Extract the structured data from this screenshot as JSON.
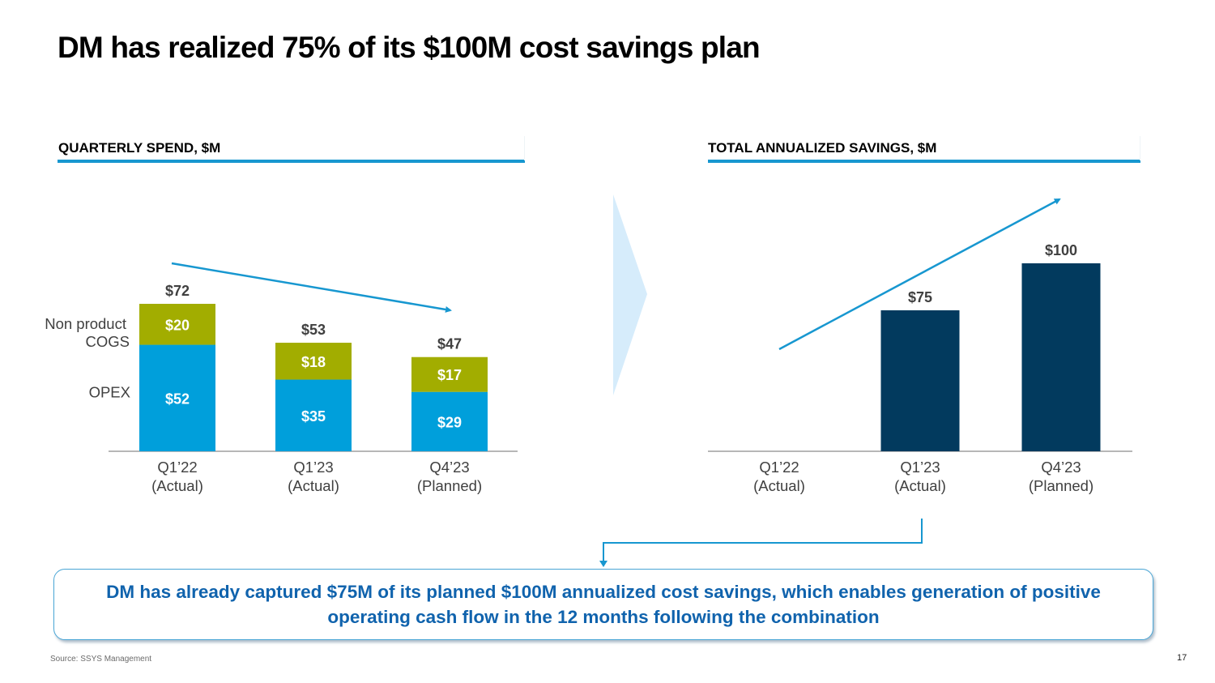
{
  "title": "DM has realized 75% of its $100M cost savings plan",
  "colors": {
    "opex": "#009fdb",
    "non_product_cogs": "#a2ad00",
    "savings_bar": "#023a5e",
    "accent": "#1797d0",
    "callout_text": "#1063ad",
    "chevron": "#d6ecfb"
  },
  "chart_data": [
    {
      "type": "bar",
      "stacked": true,
      "title": "QUARTERLY SPEND, $M",
      "categories": [
        "Q1’22\n(Actual)",
        "Q1’23\n(Actual)",
        "Q4’23\n(Planned)"
      ],
      "category_lines": [
        [
          "Q1’22",
          "(Actual)"
        ],
        [
          "Q1’23",
          "(Actual)"
        ],
        [
          "Q4’23",
          "(Planned)"
        ]
      ],
      "series": [
        {
          "name": "OPEX",
          "values": [
            52,
            35,
            29
          ],
          "labels": [
            "$52",
            "$35",
            "$29"
          ]
        },
        {
          "name": "Non product COGS",
          "values": [
            20,
            18,
            17
          ],
          "labels": [
            "$20",
            "$18",
            "$17"
          ]
        }
      ],
      "series_label_lines": [
        [
          "OPEX"
        ],
        [
          "Non product",
          "COGS"
        ]
      ],
      "totals": [
        72,
        53,
        47
      ],
      "total_labels": [
        "$72",
        "$53",
        "$47"
      ],
      "xlabel": "",
      "ylabel": "",
      "ylim": [
        0,
        80
      ],
      "grid": false,
      "legend": "left",
      "trend_arrow": "down"
    },
    {
      "type": "bar",
      "title": "TOTAL ANNUALIZED SAVINGS, $M",
      "categories": [
        "Q1’22\n(Actual)",
        "Q1’23\n(Actual)",
        "Q4’23\n(Planned)"
      ],
      "category_lines": [
        [
          "Q1’22",
          "(Actual)"
        ],
        [
          "Q1’23",
          "(Actual)"
        ],
        [
          "Q4’23",
          "(Planned)"
        ]
      ],
      "values": [
        0,
        75,
        100
      ],
      "labels": [
        "",
        "$75",
        "$100"
      ],
      "xlabel": "",
      "ylabel": "",
      "ylim": [
        0,
        100
      ],
      "grid": false,
      "trend_arrow": "up"
    }
  ],
  "callout": "DM has already captured $75M of its planned $100M annualized cost savings, which enables generation of positive operating cash flow in the 12 months following the combination",
  "source": "Source: SSYS Management",
  "page_number": "17"
}
